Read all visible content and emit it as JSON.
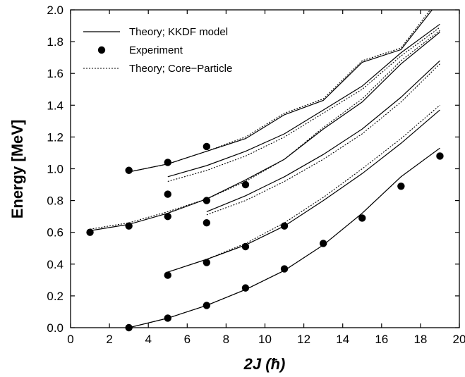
{
  "chart_data": {
    "type": "line",
    "xlabel": "2J (ħ)",
    "ylabel": "Energy [MeV]",
    "xlim": [
      0,
      20
    ],
    "ylim": [
      0.0,
      2.0
    ],
    "xticks": [
      0,
      2,
      4,
      6,
      8,
      10,
      12,
      14,
      16,
      18,
      20
    ],
    "yticks": [
      0.0,
      0.2,
      0.4,
      0.6,
      0.8,
      1.0,
      1.2,
      1.4,
      1.6,
      1.8,
      2.0
    ],
    "xtick_labels": [
      "0",
      "2",
      "4",
      "6",
      "8",
      "10",
      "12",
      "14",
      "16",
      "18",
      "20"
    ],
    "ytick_labels": [
      "0.0",
      "0.2",
      "0.4",
      "0.6",
      "0.8",
      "1.0",
      "1.2",
      "1.4",
      "1.6",
      "1.8",
      "2.0"
    ],
    "grid": false,
    "legend_position": "top-left",
    "legend": [
      {
        "label": "Theory; KKDF model",
        "style": "solid"
      },
      {
        "label": "Experiment",
        "style": "marker"
      },
      {
        "label": "Theory; Core−Particle",
        "style": "dotted"
      }
    ],
    "series": [
      {
        "group": "Theory; KKDF model",
        "style": "solid",
        "x": [
          3,
          5,
          7,
          9,
          11,
          13,
          15,
          17,
          19
        ],
        "y": [
          0.0,
          0.06,
          0.14,
          0.24,
          0.36,
          0.52,
          0.72,
          0.95,
          1.13
        ]
      },
      {
        "group": "Theory; Core−Particle",
        "style": "dotted",
        "x": [
          3,
          5,
          7,
          9,
          11,
          13,
          15,
          17,
          19
        ],
        "y": [
          0.0,
          0.06,
          0.14,
          0.24,
          0.36,
          0.52,
          0.72,
          0.95,
          1.13
        ]
      },
      {
        "group": "Theory; KKDF model",
        "style": "solid",
        "x": [
          5,
          7,
          9,
          11,
          13,
          15,
          17,
          19
        ],
        "y": [
          0.35,
          0.43,
          0.52,
          0.64,
          0.8,
          0.97,
          1.16,
          1.37
        ]
      },
      {
        "group": "Theory; Core−Particle",
        "style": "dotted",
        "x": [
          5,
          7,
          9,
          11,
          13,
          15,
          17,
          19
        ],
        "y": [
          0.35,
          0.43,
          0.53,
          0.66,
          0.82,
          1.0,
          1.19,
          1.4
        ]
      },
      {
        "group": "Theory; KKDF model",
        "style": "solid",
        "x": [
          7,
          9,
          11,
          13,
          15,
          17,
          19
        ],
        "y": [
          0.73,
          0.83,
          0.95,
          1.09,
          1.25,
          1.45,
          1.68
        ]
      },
      {
        "group": "Theory; Core−Particle",
        "style": "dotted",
        "x": [
          7,
          9,
          11,
          13,
          15,
          17,
          19
        ],
        "y": [
          0.71,
          0.8,
          0.92,
          1.06,
          1.22,
          1.42,
          1.66
        ]
      },
      {
        "group": "Theory; KKDF model",
        "style": "solid",
        "x": [
          1,
          3,
          5,
          7,
          9,
          11,
          13,
          15,
          17,
          19
        ],
        "y": [
          0.61,
          0.65,
          0.72,
          0.81,
          0.93,
          1.06,
          1.25,
          1.42,
          1.66,
          1.86
        ]
      },
      {
        "group": "Theory; Core−Particle",
        "style": "dotted",
        "x": [
          1,
          3,
          5,
          7,
          9,
          11,
          13,
          15,
          17,
          19
        ],
        "y": [
          0.62,
          0.66,
          0.73,
          0.81,
          0.92,
          1.06,
          1.26,
          1.44,
          1.68,
          1.87
        ]
      },
      {
        "group": "Theory; KKDF model",
        "style": "solid",
        "x": [
          5,
          7,
          9,
          11,
          13,
          15,
          17,
          19
        ],
        "y": [
          0.95,
          1.02,
          1.11,
          1.22,
          1.37,
          1.52,
          1.73,
          1.91
        ]
      },
      {
        "group": "Theory; Core−Particle",
        "style": "dotted",
        "x": [
          5,
          7,
          9,
          11,
          13,
          15,
          17,
          19
        ],
        "y": [
          0.92,
          0.99,
          1.08,
          1.2,
          1.35,
          1.5,
          1.71,
          1.89
        ]
      },
      {
        "group": "Theory; KKDF model",
        "style": "solid",
        "x": [
          3,
          5,
          7,
          9,
          11,
          13,
          15,
          17,
          18.6
        ],
        "y": [
          0.98,
          1.03,
          1.11,
          1.19,
          1.34,
          1.43,
          1.67,
          1.75,
          2.0
        ]
      },
      {
        "group": "Theory; Core−Particle",
        "style": "dotted",
        "x": [
          3,
          5,
          7,
          9,
          11,
          13,
          15,
          17,
          18.5
        ],
        "y": [
          0.98,
          1.03,
          1.11,
          1.2,
          1.35,
          1.44,
          1.68,
          1.76,
          2.0
        ]
      }
    ],
    "experiment": {
      "x": [
        3,
        5,
        7,
        9,
        11,
        13,
        15,
        17,
        19,
        5,
        7,
        9,
        11,
        1,
        3,
        5,
        7,
        9,
        7,
        5,
        3,
        5,
        7
      ],
      "y": [
        0.0,
        0.06,
        0.14,
        0.25,
        0.37,
        0.53,
        0.69,
        0.89,
        1.08,
        0.33,
        0.41,
        0.51,
        0.64,
        0.6,
        0.64,
        0.7,
        0.8,
        0.9,
        0.66,
        0.84,
        0.99,
        1.04,
        1.14
      ]
    }
  }
}
